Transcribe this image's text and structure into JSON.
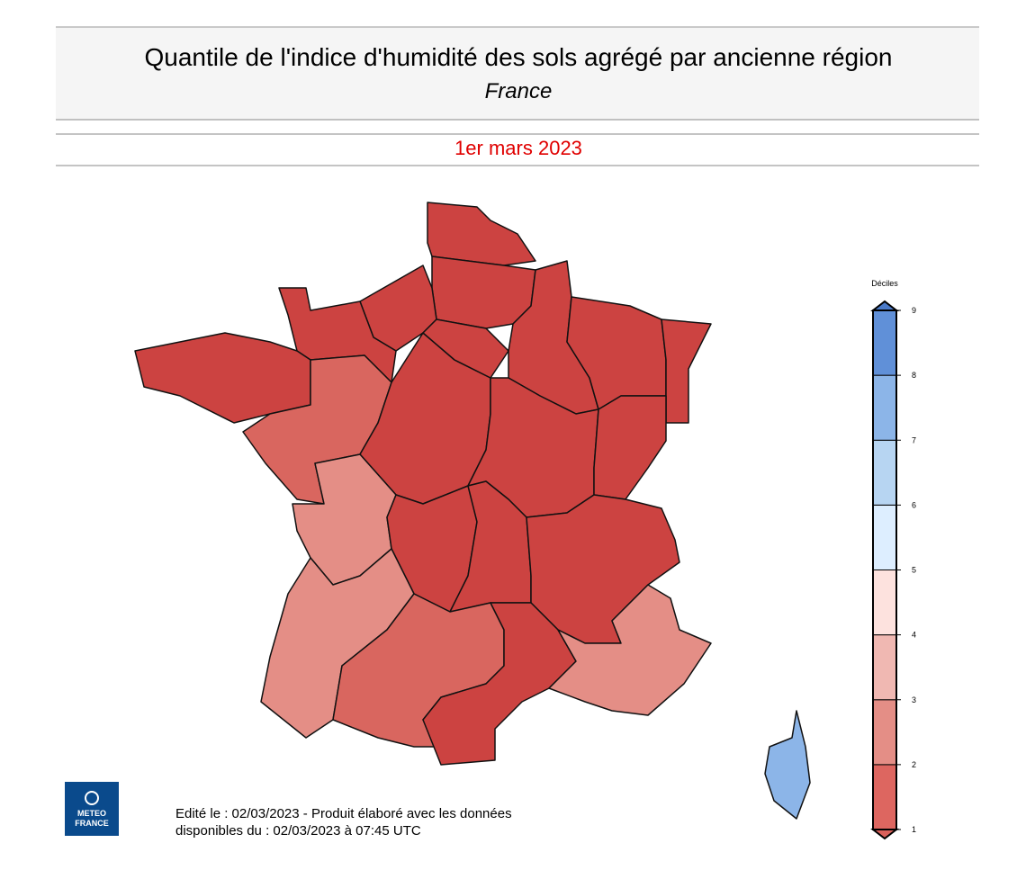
{
  "header": {
    "title": "Quantile de l'indice d'humidité des sols agrégé par ancienne région",
    "subtitle": "France",
    "date": "1er mars 2023"
  },
  "legend": {
    "title": "Déciles",
    "ticks": [
      1,
      2,
      3,
      4,
      5,
      6,
      7,
      8,
      9
    ],
    "colors": [
      "#dd6660",
      "#e48e86",
      "#f0b8b2",
      "#fde2de",
      "#ddeeff",
      "#b7d5f2",
      "#8cb5e8",
      "#6090d8"
    ]
  },
  "footer": {
    "line1": "Edité le : 02/03/2023 - Produit élaboré avec les données",
    "line2": "disponibles du : 02/03/2023 à 07:45 UTC"
  },
  "logo": {
    "line1": "METEO",
    "line2": "FRANCE"
  }
}
